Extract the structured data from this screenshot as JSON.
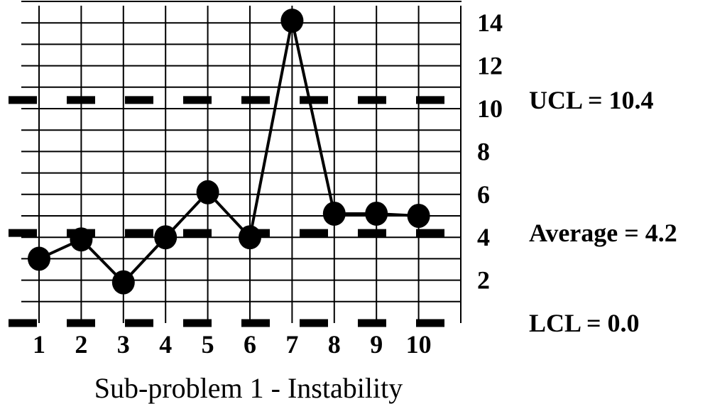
{
  "chart_data": {
    "type": "line",
    "title": "Sub-problem 1 - Instability",
    "categories": [
      "1",
      "2",
      "3",
      "4",
      "5",
      "6",
      "7",
      "8",
      "9",
      "10"
    ],
    "series": [
      {
        "values": [
          3,
          3.9,
          1.9,
          4,
          6.1,
          4,
          14.1,
          5.1,
          5.1,
          5
        ]
      }
    ],
    "y_ticks": [
      "2",
      "4",
      "6",
      "8",
      "10",
      "12",
      "14"
    ],
    "ylim": [
      0,
      15
    ],
    "grid": true,
    "control_limits": [
      {
        "key": "ucl",
        "label": "UCL = 10.4",
        "value": 10.4,
        "style": "dashed"
      },
      {
        "key": "avg",
        "label": "Average = 4.2",
        "value": 4.2,
        "style": "dashed"
      },
      {
        "key": "lcl",
        "label": "LCL = 0.0",
        "value": 0.0,
        "style": "dashed"
      }
    ],
    "colors": {
      "line": "#000000",
      "grid": "#000000"
    }
  }
}
